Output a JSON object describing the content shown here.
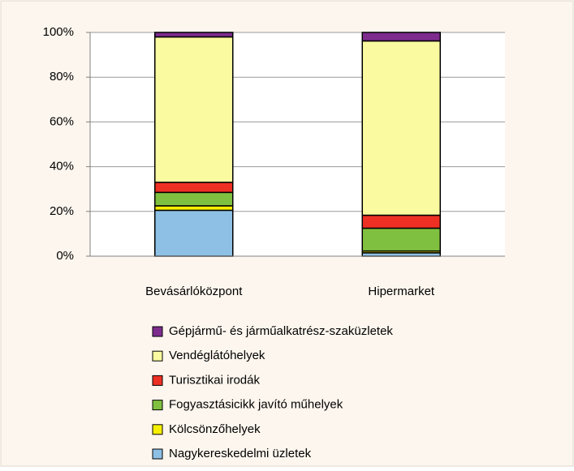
{
  "chart_data": {
    "type": "stacked_bar",
    "categories": [
      "Bevásárlóközpont",
      "Hipermarket"
    ],
    "series": [
      {
        "name": "Nagykereskedelmi üzletek",
        "color": "#8ec0e6",
        "values": [
          20.5,
          1.5
        ]
      },
      {
        "name": "Kölcsönzőhelyek",
        "color": "#f7f000",
        "values": [
          2,
          0.8
        ]
      },
      {
        "name": "Fogyasztásicikk javító műhelyek",
        "color": "#80c040",
        "values": [
          6,
          10.2
        ]
      },
      {
        "name": "Turisztikai irodák",
        "color": "#ee3024",
        "values": [
          4.5,
          5.8
        ]
      },
      {
        "name": "Vendéglátóhelyek",
        "color": "#fafaa0",
        "values": [
          65,
          77.9
        ]
      },
      {
        "name": "Gépjármű- és járműalkatrész-szaküzletek",
        "color": "#7d2c8e",
        "values": [
          2,
          3.8
        ]
      }
    ],
    "ylim": [
      0,
      100
    ],
    "yticks": [
      {
        "value": 0,
        "label": "0%"
      },
      {
        "value": 20,
        "label": "20%"
      },
      {
        "value": 40,
        "label": "40%"
      },
      {
        "value": 60,
        "label": "60%"
      },
      {
        "value": 80,
        "label": "80%"
      },
      {
        "value": 100,
        "label": "100%"
      }
    ],
    "grid": true,
    "legend": "bottom"
  }
}
